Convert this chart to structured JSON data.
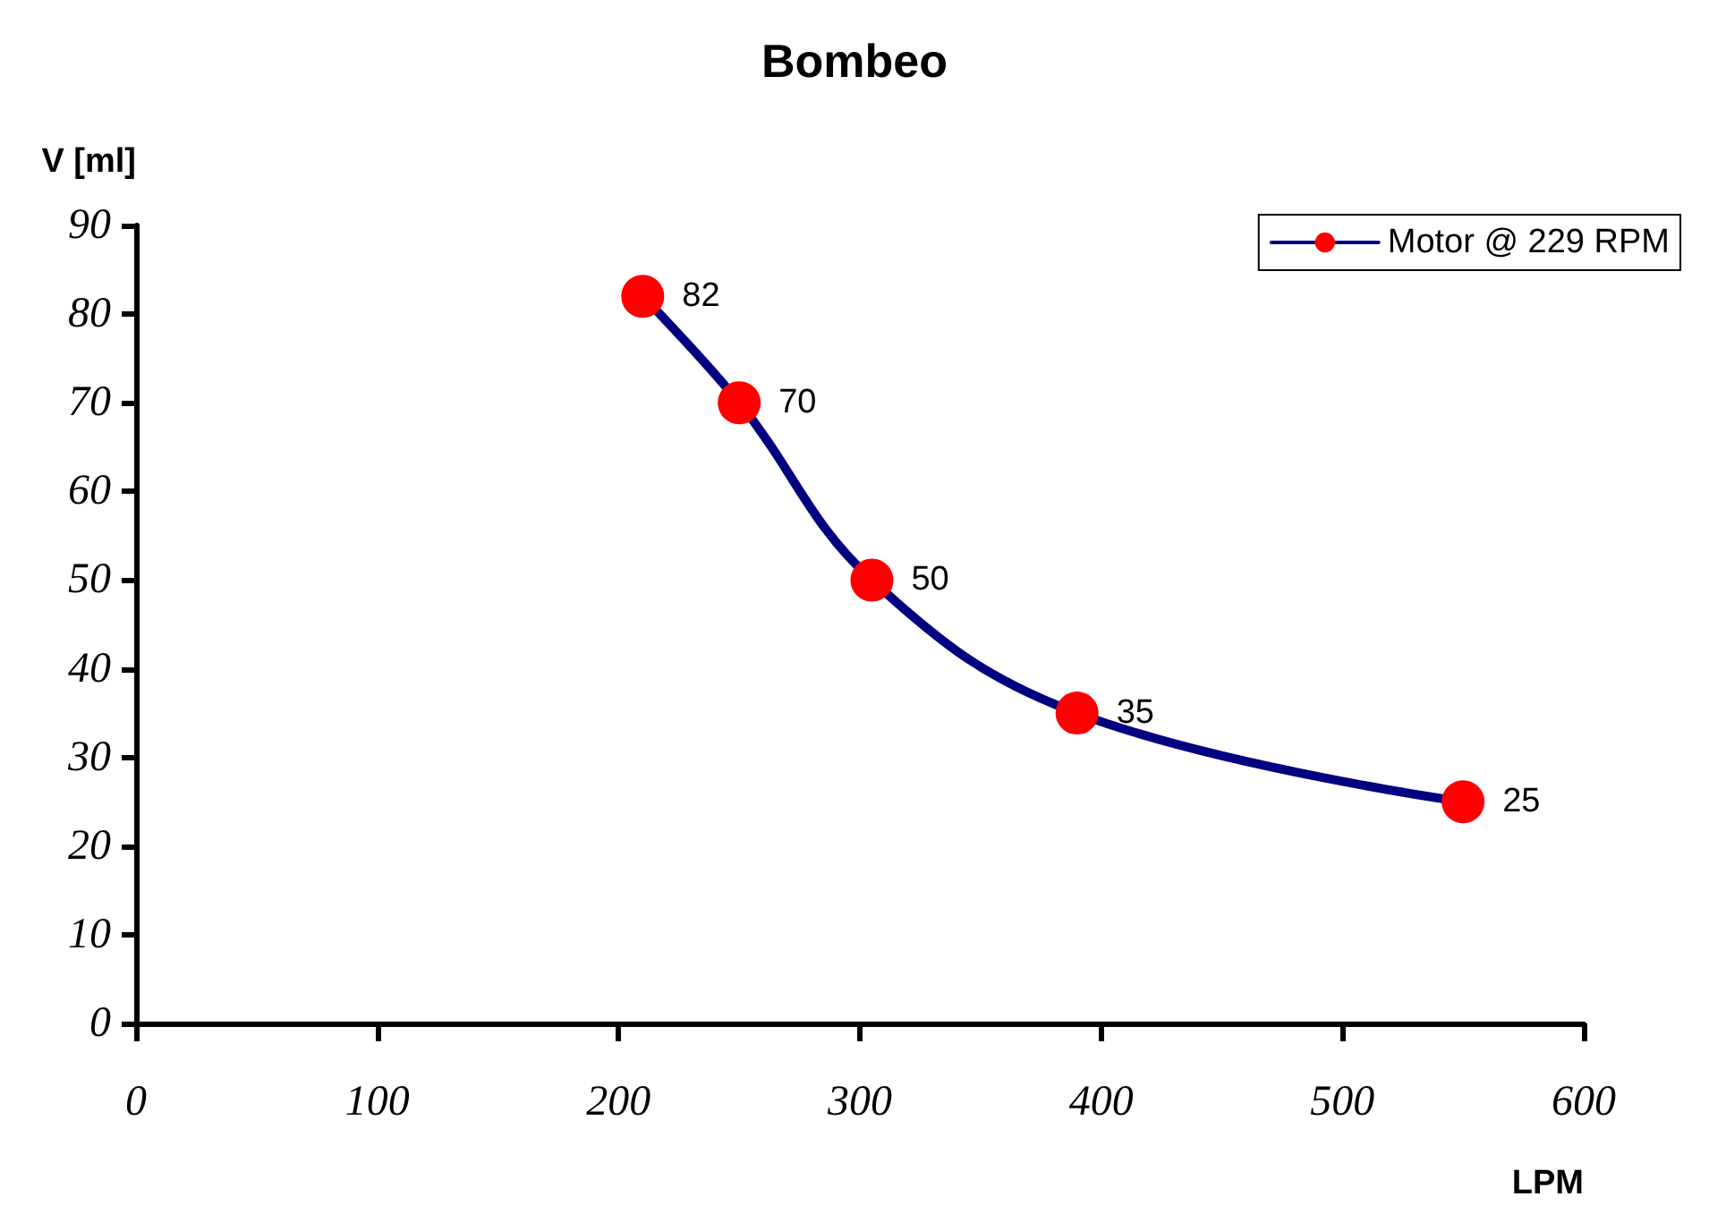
{
  "chart_data": {
    "type": "line",
    "title": "Bombeo",
    "xlabel": "LPM",
    "ylabel": "V [ml]",
    "xlim": [
      0,
      600
    ],
    "xticks": [
      0,
      100,
      200,
      300,
      400,
      500,
      600
    ],
    "ylim": [
      0,
      90
    ],
    "yticks": [
      0,
      10,
      20,
      30,
      40,
      50,
      60,
      70,
      80,
      90
    ],
    "series": [
      {
        "name": "Motor @ 229 RPM",
        "color": "#000080",
        "colors": [
          "#ff0000",
          "#ff0000",
          "#ff0000",
          "#ff0000",
          "#ff0000"
        ],
        "x": [
          210,
          250,
          305,
          390,
          550
        ],
        "values": [
          82,
          70,
          50,
          35,
          25
        ]
      }
    ],
    "data_labels": true,
    "marker": "circle",
    "line_style": "solid",
    "grid": false,
    "legend": "top right"
  }
}
